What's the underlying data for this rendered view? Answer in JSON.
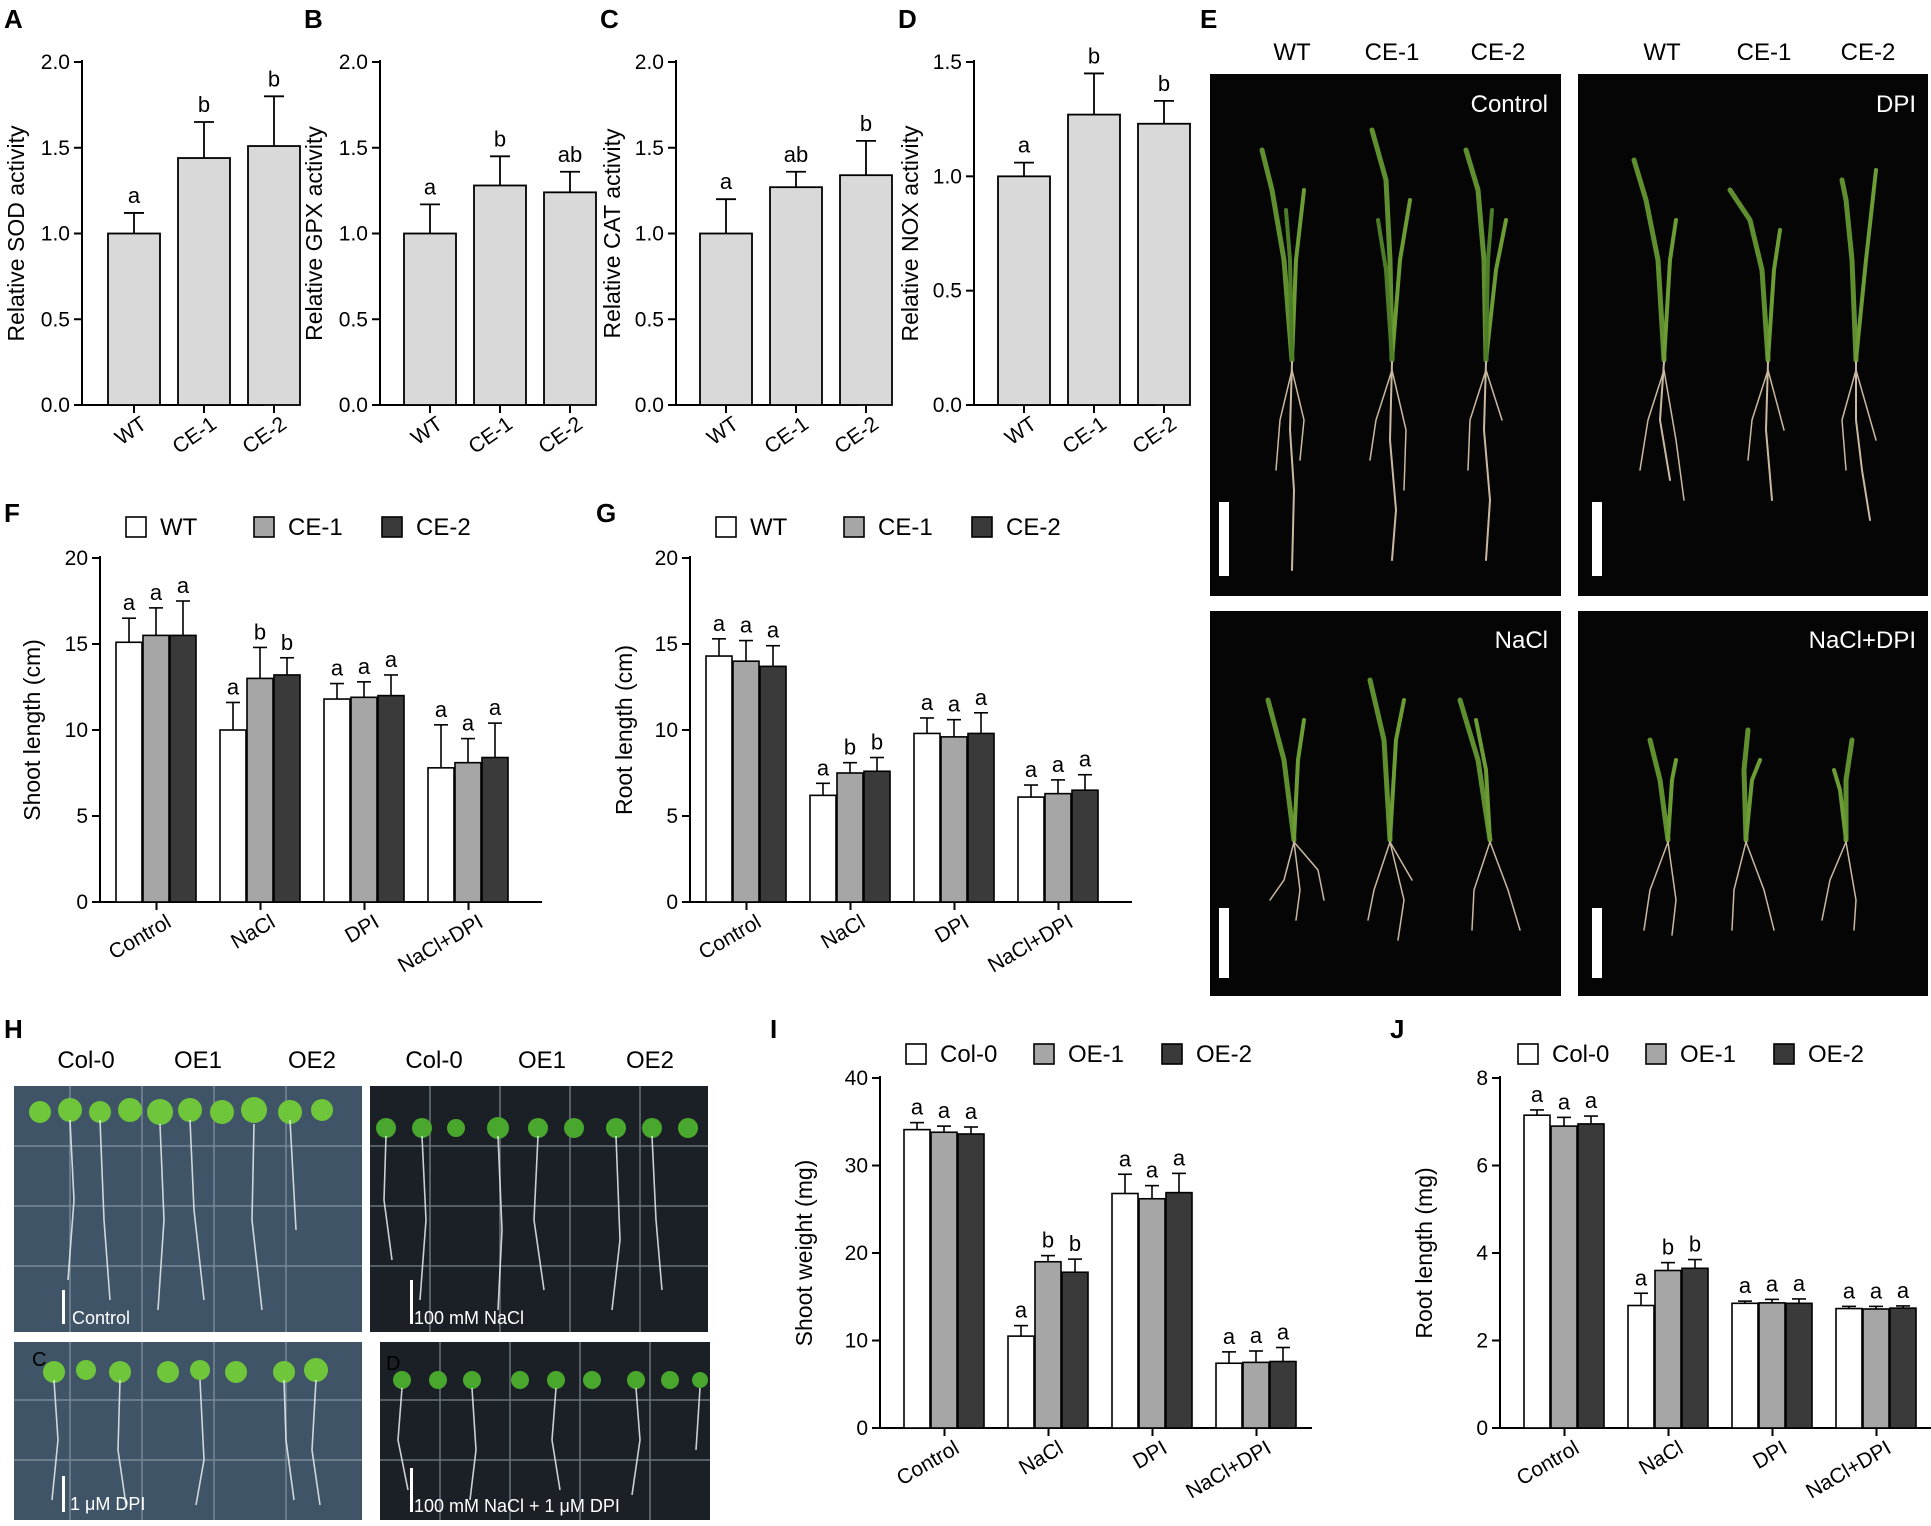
{
  "colors": {
    "bar_single": "#d9d9d9",
    "series_wt": "#ffffff",
    "series_ce1": "#a6a6a6",
    "series_ce2": "#3a3a3a",
    "photo_background": "#050505",
    "plate_dark": "#1b2027",
    "plate_light": "#3f5466"
  },
  "chart_data": [
    {
      "id": "A",
      "type": "bar",
      "panel": "A",
      "ylabel": "Relative SOD activity",
      "xlabel": "",
      "categories": [
        "WT",
        "CE-1",
        "CE-2"
      ],
      "values": [
        1.0,
        1.44,
        1.51
      ],
      "errors": [
        0.12,
        0.21,
        0.29
      ],
      "letters": [
        "a",
        "b",
        "b"
      ],
      "ylim": [
        0,
        2.0
      ],
      "yticks": [
        "0.0",
        "0.5",
        "1.0",
        "1.5",
        "2.0"
      ]
    },
    {
      "id": "B",
      "type": "bar",
      "panel": "B",
      "ylabel": "Relative GPX activity",
      "xlabel": "",
      "categories": [
        "WT",
        "CE-1",
        "CE-2"
      ],
      "values": [
        1.0,
        1.28,
        1.24
      ],
      "errors": [
        0.17,
        0.17,
        0.12
      ],
      "letters": [
        "a",
        "b",
        "ab"
      ],
      "ylim": [
        0,
        2.0
      ],
      "yticks": [
        "0.0",
        "0.5",
        "1.0",
        "1.5",
        "2.0"
      ]
    },
    {
      "id": "C",
      "type": "bar",
      "panel": "C",
      "ylabel": "Relative CAT activity",
      "xlabel": "",
      "categories": [
        "WT",
        "CE-1",
        "CE-2"
      ],
      "values": [
        1.0,
        1.27,
        1.34
      ],
      "errors": [
        0.2,
        0.09,
        0.2
      ],
      "letters": [
        "a",
        "ab",
        "b"
      ],
      "ylim": [
        0,
        2.0
      ],
      "yticks": [
        "0.0",
        "0.5",
        "1.0",
        "1.5",
        "2.0"
      ]
    },
    {
      "id": "D",
      "type": "bar",
      "panel": "D",
      "ylabel": "Relative NOX activity",
      "xlabel": "",
      "categories": [
        "WT",
        "CE-1",
        "CE-2"
      ],
      "values": [
        1.0,
        1.27,
        1.23
      ],
      "errors": [
        0.06,
        0.18,
        0.1
      ],
      "letters": [
        "a",
        "b",
        "b"
      ],
      "ylim": [
        0,
        1.5
      ],
      "yticks": [
        "0.0",
        "0.5",
        "1.0",
        "1.5"
      ]
    },
    {
      "id": "F",
      "type": "bar",
      "panel": "F",
      "ylabel": "Shoot length (cm)",
      "xlabel": "",
      "categories": [
        "Control",
        "NaCl",
        "DPI",
        "NaCl+DPI"
      ],
      "series": [
        {
          "name": "WT",
          "values": [
            15.1,
            10.0,
            11.8,
            7.8
          ],
          "errors": [
            1.4,
            1.6,
            0.9,
            2.5
          ],
          "letters": [
            "a",
            "a",
            "a",
            "a"
          ]
        },
        {
          "name": "CE-1",
          "values": [
            15.5,
            13.0,
            11.9,
            8.1
          ],
          "errors": [
            1.6,
            1.8,
            0.9,
            1.4
          ],
          "letters": [
            "a",
            "b",
            "a",
            "a"
          ]
        },
        {
          "name": "CE-2",
          "values": [
            15.5,
            13.2,
            12.0,
            8.4
          ],
          "errors": [
            2.0,
            1.0,
            1.2,
            2.0
          ],
          "letters": [
            "a",
            "b",
            "a",
            "a"
          ]
        }
      ],
      "ylim": [
        0,
        20
      ],
      "yticks": [
        "0",
        "5",
        "10",
        "15",
        "20"
      ],
      "legend_position": "top"
    },
    {
      "id": "G",
      "type": "bar",
      "panel": "G",
      "ylabel": "Root length (cm)",
      "xlabel": "",
      "categories": [
        "Control",
        "NaCl",
        "DPI",
        "NaCl+DPI"
      ],
      "series": [
        {
          "name": "WT",
          "values": [
            14.3,
            6.2,
            9.8,
            6.1
          ],
          "errors": [
            1.0,
            0.7,
            0.9,
            0.7
          ],
          "letters": [
            "a",
            "a",
            "a",
            "a"
          ]
        },
        {
          "name": "CE-1",
          "values": [
            14.0,
            7.5,
            9.6,
            6.3
          ],
          "errors": [
            1.2,
            0.6,
            1.0,
            0.8
          ],
          "letters": [
            "a",
            "b",
            "a",
            "a"
          ]
        },
        {
          "name": "CE-2",
          "values": [
            13.7,
            7.6,
            9.8,
            6.5
          ],
          "errors": [
            1.2,
            0.8,
            1.2,
            0.9
          ],
          "letters": [
            "a",
            "b",
            "a",
            "a"
          ]
        }
      ],
      "ylim": [
        0,
        20
      ],
      "yticks": [
        "0",
        "5",
        "10",
        "15",
        "20"
      ],
      "legend_position": "top"
    },
    {
      "id": "I",
      "type": "bar",
      "panel": "I",
      "ylabel": "Shoot weight (mg)",
      "xlabel": "",
      "categories": [
        "Control",
        "NaCl",
        "DPI",
        "NaCl+DPI"
      ],
      "series": [
        {
          "name": "Col-0",
          "values": [
            34.1,
            10.5,
            26.8,
            7.4
          ],
          "errors": [
            0.8,
            1.2,
            2.2,
            1.3
          ],
          "letters": [
            "a",
            "a",
            "a",
            "a"
          ]
        },
        {
          "name": "OE-1",
          "values": [
            33.8,
            19.0,
            26.2,
            7.5
          ],
          "errors": [
            0.7,
            0.7,
            1.5,
            1.3
          ],
          "letters": [
            "a",
            "b",
            "a",
            "a"
          ]
        },
        {
          "name": "OE-2",
          "values": [
            33.6,
            17.8,
            26.9,
            7.6
          ],
          "errors": [
            0.8,
            1.5,
            2.2,
            1.6
          ],
          "letters": [
            "a",
            "b",
            "a",
            "a"
          ]
        }
      ],
      "ylim": [
        0,
        40
      ],
      "yticks": [
        "0",
        "10",
        "20",
        "30",
        "40"
      ],
      "legend_position": "top"
    },
    {
      "id": "J",
      "type": "bar",
      "panel": "J",
      "ylabel": "Root length (mg)",
      "xlabel": "",
      "categories": [
        "Control",
        "NaCl",
        "DPI",
        "NaCl+DPI"
      ],
      "series": [
        {
          "name": "Col-0",
          "values": [
            7.15,
            2.8,
            2.85,
            2.73
          ],
          "errors": [
            0.12,
            0.28,
            0.05,
            0.05
          ],
          "letters": [
            "a",
            "a",
            "a",
            "a"
          ]
        },
        {
          "name": "OE-1",
          "values": [
            6.9,
            3.6,
            2.86,
            2.72
          ],
          "errors": [
            0.2,
            0.18,
            0.08,
            0.06
          ],
          "letters": [
            "a",
            "b",
            "a",
            "a"
          ]
        },
        {
          "name": "OE-2",
          "values": [
            6.95,
            3.65,
            2.85,
            2.74
          ],
          "errors": [
            0.18,
            0.2,
            0.1,
            0.05
          ],
          "letters": [
            "a",
            "b",
            "a",
            "a"
          ]
        }
      ],
      "ylim": [
        0,
        8
      ],
      "yticks": [
        "0",
        "2",
        "4",
        "6",
        "8"
      ],
      "legend_position": "top"
    }
  ],
  "photo_E": {
    "letter": "E",
    "top_labels_left": [
      "WT",
      "CE-1",
      "CE-2"
    ],
    "top_labels_right": [
      "WT",
      "CE-1",
      "CE-2"
    ],
    "conditions": [
      "Control",
      "DPI",
      "NaCl",
      "NaCl+DPI"
    ]
  },
  "photo_H": {
    "letter": "H",
    "top_labels_left": [
      "Col-0",
      "OE1",
      "OE2"
    ],
    "top_labels_right": [
      "Col-0",
      "OE1",
      "OE2"
    ],
    "plates": [
      {
        "condition": "Control",
        "corner_letter": ""
      },
      {
        "condition": "100 mM NaCl",
        "corner_letter": ""
      },
      {
        "condition": "1 μM DPI",
        "corner_letter": "C"
      },
      {
        "condition": "100 mM NaCl + 1 μM DPI",
        "corner_letter": "D"
      }
    ]
  }
}
